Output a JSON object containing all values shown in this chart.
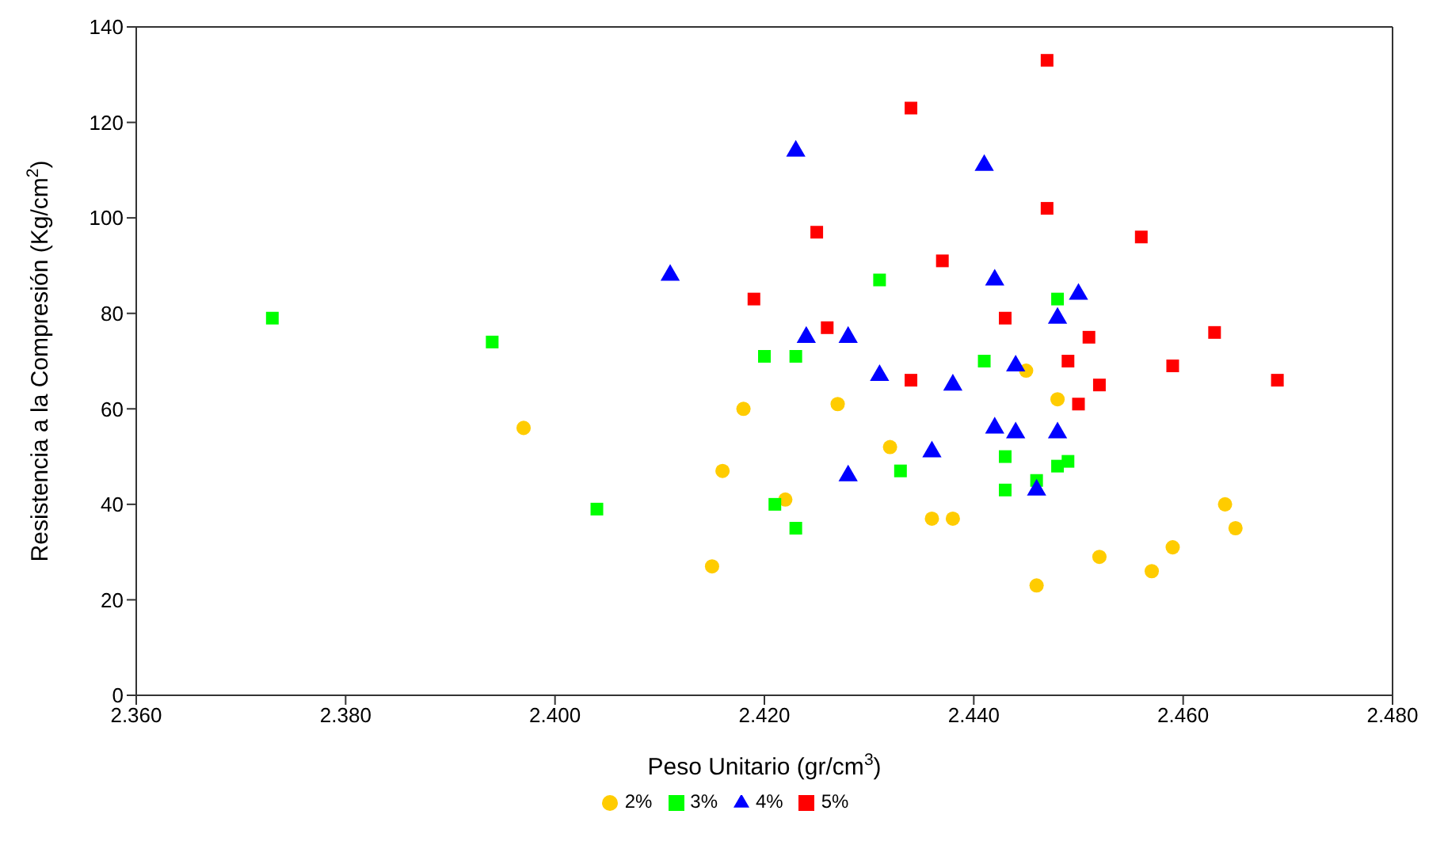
{
  "chart_data": {
    "type": "scatter",
    "xlabel": "Peso Unitario (gr/cm$^{3}$)",
    "ylabel": "Resistencia a la Compresión (Kg/cm$^{2}$)",
    "xlim": [
      2.36,
      2.48
    ],
    "xticks": [
      {
        "value": 2.36,
        "label": "2.360"
      },
      {
        "value": 2.38,
        "label": "2.380"
      },
      {
        "value": 2.4,
        "label": "2.400"
      },
      {
        "value": 2.42,
        "label": "2.420"
      },
      {
        "value": 2.44,
        "label": "2.440"
      },
      {
        "value": 2.46,
        "label": "2.460"
      },
      {
        "value": 2.48,
        "label": "2.480"
      }
    ],
    "ylim": [
      0,
      140
    ],
    "yticks": [
      0,
      20,
      40,
      60,
      80,
      100,
      120,
      140
    ],
    "grid": false,
    "legend": "bottom",
    "series": [
      {
        "name": "2%",
        "color": "#ffcc00",
        "marker": "circle",
        "x": [
          2.397,
          2.418,
          2.416,
          2.422,
          2.415,
          2.427,
          2.432,
          2.436,
          2.438,
          2.446,
          2.445,
          2.448,
          2.452,
          2.464,
          2.465,
          2.459,
          2.457
        ],
        "values": [
          56,
          60,
          47,
          41,
          27,
          61,
          52,
          37,
          37,
          23,
          68,
          62,
          29,
          40,
          35,
          31,
          26
        ]
      },
      {
        "name": "3%",
        "color": "#00ff00",
        "marker": "square",
        "x": [
          2.373,
          2.394,
          2.404,
          2.42,
          2.421,
          2.423,
          2.423,
          2.431,
          2.433,
          2.441,
          2.443,
          2.443,
          2.446,
          2.448,
          2.448,
          2.449
        ],
        "values": [
          79,
          74,
          39,
          71,
          40,
          71,
          35,
          87,
          47,
          70,
          50,
          43,
          45,
          83,
          48,
          49
        ]
      },
      {
        "name": "4%",
        "color": "#0000ff",
        "marker": "triangle",
        "x": [
          2.423,
          2.441,
          2.411,
          2.442,
          2.45,
          2.448,
          2.424,
          2.428,
          2.431,
          2.438,
          2.444,
          2.442,
          2.444,
          2.448,
          2.436,
          2.428,
          2.446
        ],
        "values": [
          114,
          111,
          88,
          87,
          84,
          79,
          75,
          75,
          67,
          65,
          69,
          56,
          55,
          55,
          51,
          46,
          43
        ]
      },
      {
        "name": "5%",
        "color": "#ff0000",
        "marker": "square",
        "x": [
          2.447,
          2.434,
          2.447,
          2.425,
          2.437,
          2.419,
          2.426,
          2.443,
          2.451,
          2.449,
          2.434,
          2.45,
          2.452,
          2.456,
          2.463,
          2.459,
          2.469
        ],
        "values": [
          133,
          123,
          102,
          97,
          91,
          83,
          77,
          79,
          75,
          70,
          66,
          61,
          65,
          96,
          76,
          69,
          66
        ]
      }
    ]
  }
}
